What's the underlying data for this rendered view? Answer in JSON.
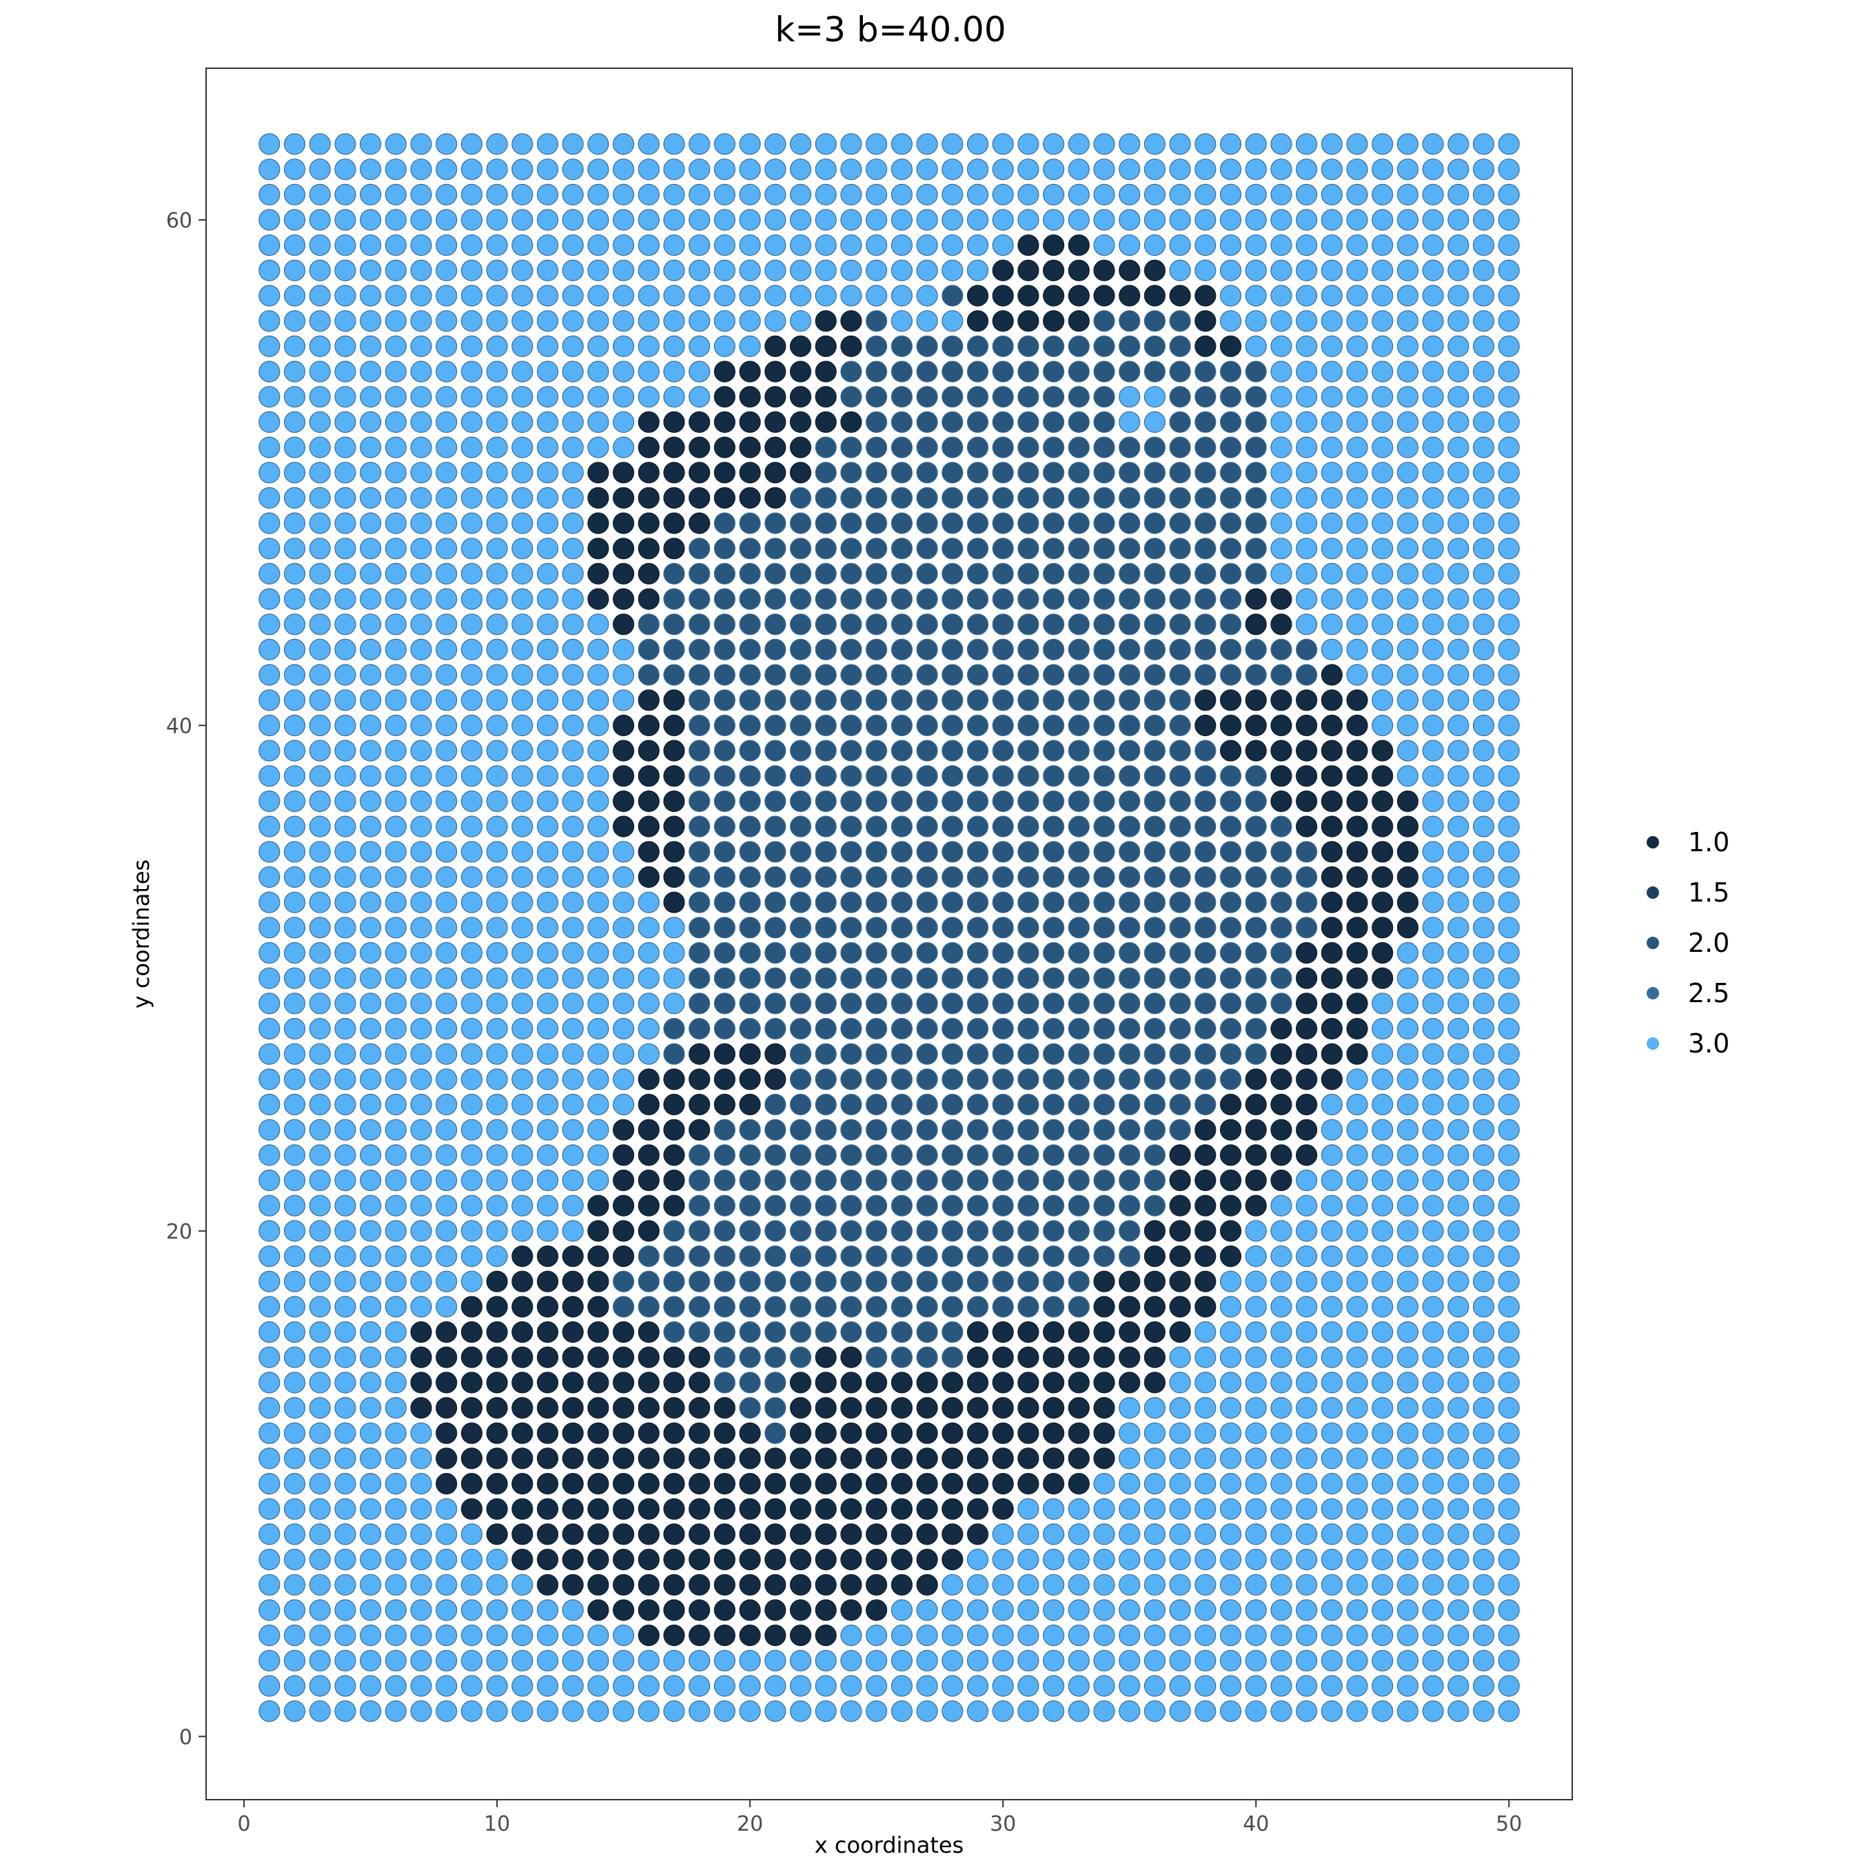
{
  "chart_data": {
    "type": "scatter",
    "title": "k=3 b=40.00",
    "xlabel": "x coordinates",
    "ylabel": "y coordinates",
    "xlim": [
      -1.5,
      52.5
    ],
    "ylim": [
      -2.5,
      66
    ],
    "xticks": [
      0,
      10,
      20,
      30,
      40,
      50
    ],
    "yticks": [
      0,
      20,
      40,
      60
    ],
    "grid_x": [
      1,
      50
    ],
    "grid_y": [
      1,
      63
    ],
    "default_value": 3.0,
    "colors": {
      "1.0": "#132b43",
      "1.5": "#1d3f5e",
      "2.0": "#29567c",
      "2.5": "#346d9b",
      "3.0": "#56b1f7"
    },
    "legend": {
      "position": "right",
      "entries": [
        {
          "label": "1.0",
          "value": 1.0
        },
        {
          "label": "1.5",
          "value": 1.5
        },
        {
          "label": "2.0",
          "value": 2.0
        },
        {
          "label": "2.5",
          "value": 2.5
        },
        {
          "label": "3.0",
          "value": 3.0
        }
      ]
    },
    "dark_rows": {
      "59": [
        [
          31,
          33
        ]
      ],
      "58": [
        [
          30,
          36
        ]
      ],
      "57": [
        [
          29,
          38
        ]
      ],
      "56": [
        [
          23,
          24
        ],
        [
          29,
          33
        ],
        [
          38,
          38
        ]
      ],
      "55": [
        [
          21,
          24
        ],
        [
          38,
          39
        ]
      ],
      "54": [
        [
          19,
          23
        ]
      ],
      "53": [
        [
          19,
          23
        ]
      ],
      "52": [
        [
          16,
          24
        ]
      ],
      "51": [
        [
          16,
          22
        ]
      ],
      "50": [
        [
          14,
          22
        ]
      ],
      "49": [
        [
          14,
          21
        ]
      ],
      "48": [
        [
          14,
          18
        ]
      ],
      "47": [
        [
          14,
          17
        ]
      ],
      "46": [
        [
          14,
          16
        ]
      ],
      "45": [
        [
          14,
          16
        ],
        [
          40,
          41
        ]
      ],
      "44": [
        [
          15,
          15
        ],
        [
          40,
          41
        ]
      ],
      "42": [
        [
          43,
          43
        ]
      ],
      "41": [
        [
          16,
          17
        ],
        [
          38,
          44
        ]
      ],
      "40": [
        [
          15,
          17
        ],
        [
          38,
          44
        ]
      ],
      "39": [
        [
          15,
          17
        ],
        [
          39,
          45
        ]
      ],
      "38": [
        [
          15,
          17
        ],
        [
          41,
          45
        ]
      ],
      "37": [
        [
          15,
          17
        ],
        [
          41,
          46
        ]
      ],
      "36": [
        [
          15,
          17
        ],
        [
          42,
          46
        ]
      ],
      "35": [
        [
          16,
          17
        ],
        [
          43,
          46
        ]
      ],
      "34": [
        [
          16,
          17
        ],
        [
          43,
          46
        ]
      ],
      "33": [
        [
          17,
          17
        ],
        [
          43,
          46
        ]
      ],
      "32": [
        [
          43,
          46
        ]
      ],
      "31": [
        [
          42,
          45
        ]
      ],
      "30": [
        [
          42,
          45
        ]
      ],
      "29": [
        [
          42,
          44
        ]
      ],
      "28": [
        [
          41,
          44
        ]
      ],
      "27": [
        [
          18,
          21
        ],
        [
          41,
          44
        ]
      ],
      "26": [
        [
          16,
          21
        ],
        [
          40,
          43
        ]
      ],
      "25": [
        [
          16,
          20
        ],
        [
          39,
          42
        ]
      ],
      "24": [
        [
          15,
          18
        ],
        [
          38,
          42
        ]
      ],
      "23": [
        [
          15,
          17
        ],
        [
          37,
          42
        ]
      ],
      "22": [
        [
          15,
          17
        ],
        [
          37,
          41
        ]
      ],
      "21": [
        [
          14,
          17
        ],
        [
          37,
          40
        ]
      ],
      "20": [
        [
          14,
          16
        ],
        [
          36,
          39
        ]
      ],
      "19": [
        [
          11,
          15
        ],
        [
          36,
          39
        ]
      ],
      "18": [
        [
          10,
          14
        ],
        [
          34,
          38
        ]
      ],
      "17": [
        [
          9,
          14
        ],
        [
          34,
          38
        ]
      ],
      "16": [
        [
          7,
          16
        ],
        [
          29,
          37
        ]
      ],
      "15": [
        [
          7,
          18
        ],
        [
          23,
          24
        ],
        [
          29,
          36
        ]
      ],
      "14": [
        [
          7,
          18
        ],
        [
          22,
          36
        ]
      ],
      "13": [
        [
          7,
          19
        ],
        [
          22,
          34
        ]
      ],
      "12": [
        [
          8,
          20
        ],
        [
          22,
          34
        ]
      ],
      "11": [
        [
          8,
          34
        ]
      ],
      "10": [
        [
          8,
          33
        ]
      ],
      "9": [
        [
          9,
          30
        ]
      ],
      "8": [
        [
          10,
          29
        ]
      ],
      "7": [
        [
          11,
          28
        ]
      ],
      "6": [
        [
          12,
          27
        ]
      ],
      "5": [
        [
          14,
          25
        ]
      ],
      "4": [
        [
          16,
          23
        ]
      ]
    },
    "mid_rows": {
      "57": [
        [
          28,
          28
        ]
      ],
      "56": [
        [
          25,
          25
        ],
        [
          34,
          37
        ]
      ],
      "55": [
        [
          25,
          37
        ]
      ],
      "54": [
        [
          24,
          40
        ]
      ],
      "53": [
        [
          24,
          34
        ],
        [
          37,
          40
        ]
      ],
      "52": [
        [
          25,
          34
        ],
        [
          37,
          40
        ]
      ],
      "51": [
        [
          23,
          40
        ]
      ],
      "50": [
        [
          23,
          40
        ]
      ],
      "49": [
        [
          22,
          40
        ]
      ],
      "48": [
        [
          19,
          40
        ]
      ],
      "47": [
        [
          18,
          40
        ]
      ],
      "46": [
        [
          17,
          40
        ]
      ],
      "45": [
        [
          17,
          39
        ]
      ],
      "44": [
        [
          16,
          39
        ]
      ],
      "43": [
        [
          16,
          42
        ]
      ],
      "42": [
        [
          16,
          42
        ]
      ],
      "41": [
        [
          18,
          37
        ]
      ],
      "40": [
        [
          18,
          37
        ]
      ],
      "39": [
        [
          18,
          38
        ]
      ],
      "38": [
        [
          18,
          40
        ]
      ],
      "37": [
        [
          18,
          40
        ]
      ],
      "36": [
        [
          18,
          41
        ]
      ],
      "35": [
        [
          18,
          42
        ]
      ],
      "34": [
        [
          18,
          42
        ]
      ],
      "33": [
        [
          18,
          42
        ]
      ],
      "32": [
        [
          18,
          42
        ]
      ],
      "31": [
        [
          18,
          41
        ]
      ],
      "30": [
        [
          18,
          41
        ]
      ],
      "29": [
        [
          18,
          41
        ]
      ],
      "28": [
        [
          17,
          40
        ]
      ],
      "27": [
        [
          17,
          17
        ],
        [
          22,
          40
        ]
      ],
      "26": [
        [
          22,
          39
        ]
      ],
      "25": [
        [
          21,
          38
        ]
      ],
      "24": [
        [
          19,
          37
        ]
      ],
      "23": [
        [
          18,
          36
        ]
      ],
      "22": [
        [
          18,
          36
        ]
      ],
      "21": [
        [
          18,
          36
        ]
      ],
      "20": [
        [
          17,
          35
        ]
      ],
      "19": [
        [
          16,
          35
        ]
      ],
      "18": [
        [
          15,
          33
        ]
      ],
      "17": [
        [
          15,
          33
        ]
      ],
      "16": [
        [
          17,
          28
        ]
      ],
      "15": [
        [
          19,
          22
        ],
        [
          25,
          28
        ]
      ],
      "14": [
        [
          19,
          21
        ]
      ],
      "13": [
        [
          20,
          21
        ]
      ],
      "12": [
        [
          21,
          21
        ]
      ]
    }
  }
}
